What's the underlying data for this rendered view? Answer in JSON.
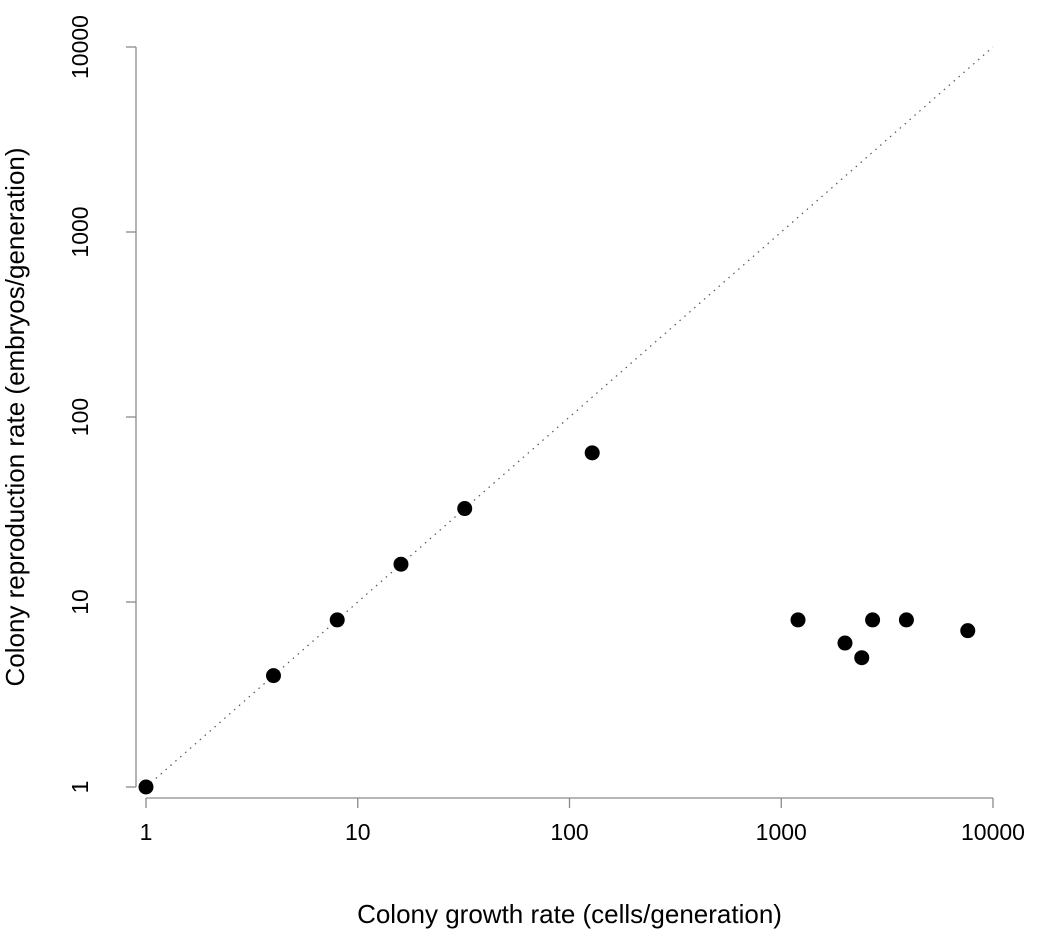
{
  "chart_data": {
    "type": "scatter",
    "title": "",
    "xlabel": "Colony growth rate (cells/generation)",
    "ylabel": "Colony reproduction rate (embryos/generation)",
    "xscale": "log10",
    "yscale": "log10",
    "xlim": [
      1,
      10000
    ],
    "ylim": [
      1,
      10000
    ],
    "grid": false,
    "legend": "none",
    "x_ticks": [
      1,
      10,
      100,
      1000,
      10000
    ],
    "x_tick_labels": [
      "1",
      "10",
      "100",
      "1000",
      "10000"
    ],
    "y_ticks": [
      1,
      10,
      100,
      1000,
      10000
    ],
    "y_tick_labels": [
      "1",
      "10",
      "100",
      "1000",
      "10000"
    ],
    "reference_line": {
      "style": "dotted",
      "from": [
        1,
        1
      ],
      "to": [
        10000,
        10000
      ]
    },
    "series": [
      {
        "points": [
          {
            "x": 1,
            "y": 1
          },
          {
            "x": 4,
            "y": 4
          },
          {
            "x": 8,
            "y": 8
          },
          {
            "x": 16,
            "y": 16
          },
          {
            "x": 32,
            "y": 32
          },
          {
            "x": 128,
            "y": 64
          },
          {
            "x": 1200,
            "y": 8
          },
          {
            "x": 2000,
            "y": 6
          },
          {
            "x": 2400,
            "y": 5
          },
          {
            "x": 2700,
            "y": 8
          },
          {
            "x": 3900,
            "y": 8
          },
          {
            "x": 7600,
            "y": 7
          }
        ]
      }
    ],
    "colors": {
      "points": "#000000",
      "axes": "#8a8a8a",
      "reference_line": "#555555"
    }
  }
}
